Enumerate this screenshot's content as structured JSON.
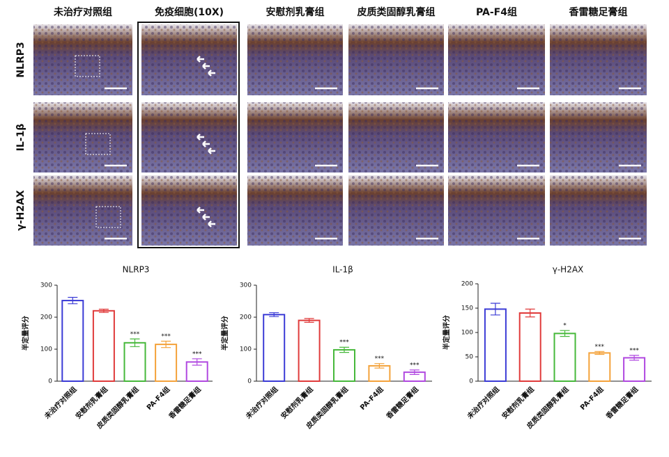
{
  "image_grid": {
    "columns": [
      "未治疗对照组",
      "免疫细胞(10X)",
      "安慰剂乳膏组",
      "皮质类固醇乳膏组",
      "PA-F4组",
      "香雷糖足膏组"
    ],
    "rows": [
      "NLRP3",
      "IL-1β",
      "γ-H2AX"
    ]
  },
  "chart_data": [
    {
      "type": "bar",
      "title": "NLRP3",
      "y_label": "半定量评分",
      "categories": [
        "未治疗对照组",
        "安慰剂乳膏组",
        "皮质类固醇乳膏组",
        "PA-F4组",
        "香雷糖足膏组"
      ],
      "values": [
        252,
        220,
        120,
        115,
        60
      ],
      "errors": [
        10,
        5,
        12,
        10,
        10
      ],
      "significance": [
        null,
        null,
        "***",
        "***",
        "***"
      ],
      "colors": [
        "#3b3bd6",
        "#e03a3a",
        "#46b83a",
        "#f4a23a",
        "#b048e0"
      ],
      "ylim": [
        0,
        300
      ],
      "yticks": [
        0,
        100,
        200,
        300
      ]
    },
    {
      "type": "bar",
      "title": "IL-1β",
      "y_label": "半定量评分",
      "categories": [
        "未治疗对照组",
        "安慰剂乳膏组",
        "皮质类固醇乳膏组",
        "PA-F4组",
        "香雷糖足膏组"
      ],
      "values": [
        208,
        190,
        98,
        48,
        28
      ],
      "errors": [
        6,
        6,
        8,
        7,
        7
      ],
      "significance": [
        null,
        null,
        "***",
        "***",
        "***"
      ],
      "colors": [
        "#3b3bd6",
        "#e03a3a",
        "#46b83a",
        "#f4a23a",
        "#b048e0"
      ],
      "ylim": [
        0,
        300
      ],
      "yticks": [
        0,
        100,
        200,
        300
      ]
    },
    {
      "type": "bar",
      "title": "γ-H2AX",
      "y_label": "半定量评分",
      "categories": [
        "未治疗对照组",
        "安慰剂乳膏组",
        "皮质类固醇乳膏组",
        "PA-F4组",
        "香雷糖足膏组"
      ],
      "values": [
        148,
        140,
        98,
        58,
        48
      ],
      "errors": [
        12,
        8,
        6,
        3,
        5
      ],
      "significance": [
        null,
        null,
        "*",
        "***",
        "***"
      ],
      "colors": [
        "#3b3bd6",
        "#e03a3a",
        "#46b83a",
        "#f4a23a",
        "#b048e0"
      ],
      "ylim": [
        0,
        200
      ],
      "yticks": [
        0,
        50,
        100,
        150,
        200
      ]
    }
  ]
}
